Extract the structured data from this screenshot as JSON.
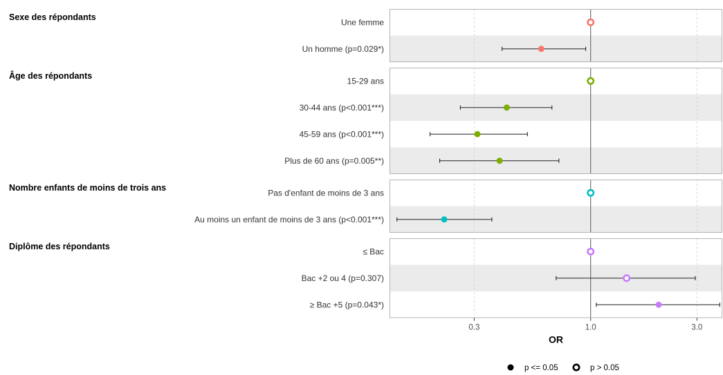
{
  "chart_data": {
    "type": "scatter",
    "subtype": "forest-plot",
    "x_axis": {
      "title": "OR",
      "scale": "log",
      "ticks": [
        0.3,
        1.0,
        3.0
      ],
      "tick_labels": [
        "0.3",
        "1.0",
        "3.0"
      ],
      "xlim": [
        0.125,
        3.9
      ]
    },
    "reference_line": 1.0,
    "grid": "vertical dashed",
    "groups": [
      {
        "title": "Sexe des répondants",
        "color": "#F8766D",
        "rows": [
          {
            "label": "Une femme",
            "or": 1.0,
            "lo": null,
            "hi": null,
            "significant": false
          },
          {
            "label": "Un homme (p=0.029*)",
            "or": 0.6,
            "lo": 0.4,
            "hi": 0.95,
            "significant": true
          }
        ]
      },
      {
        "title": "Âge des répondants",
        "color": "#7CAE00",
        "rows": [
          {
            "label": "15-29 ans",
            "or": 1.0,
            "lo": null,
            "hi": null,
            "significant": false
          },
          {
            "label": "30-44 ans (p<0.001***)",
            "or": 0.42,
            "lo": 0.26,
            "hi": 0.67,
            "significant": true
          },
          {
            "label": "45-59 ans (p<0.001***)",
            "or": 0.31,
            "lo": 0.19,
            "hi": 0.52,
            "significant": true
          },
          {
            "label": "Plus de 60 ans (p=0.005**)",
            "or": 0.39,
            "lo": 0.21,
            "hi": 0.72,
            "significant": true
          }
        ]
      },
      {
        "title": "Nombre enfants de moins de trois ans",
        "color": "#00BFC4",
        "rows": [
          {
            "label": "Pas d'enfant de moins de 3 ans",
            "or": 1.0,
            "lo": null,
            "hi": null,
            "significant": false
          },
          {
            "label": "Au moins un enfant de moins de 3 ans (p<0.001***)",
            "or": 0.22,
            "lo": 0.135,
            "hi": 0.36,
            "significant": true
          }
        ]
      },
      {
        "title": "Diplôme des répondants",
        "color": "#C77CFF",
        "rows": [
          {
            "label": "≤ Bac",
            "or": 1.0,
            "lo": null,
            "hi": null,
            "significant": false
          },
          {
            "label": "Bac +2 ou 4 (p=0.307)",
            "or": 1.45,
            "lo": 0.7,
            "hi": 2.95,
            "significant": false
          },
          {
            "label": "≥ Bac +5 (p=0.043*)",
            "or": 2.02,
            "lo": 1.06,
            "hi": 3.8,
            "significant": true
          }
        ]
      }
    ],
    "legend": {
      "position": "bottom",
      "items": [
        {
          "label": "p <= 0.05",
          "marker": "filled-circle"
        },
        {
          "label": "p > 0.05",
          "marker": "open-circle"
        }
      ]
    }
  }
}
